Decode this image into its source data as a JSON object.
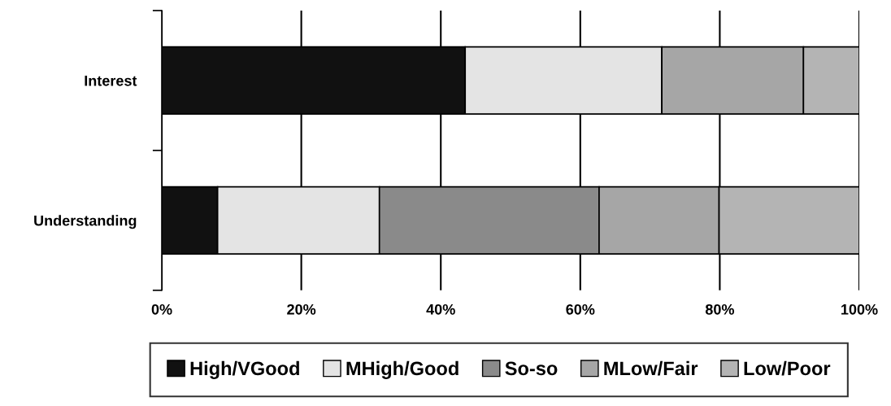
{
  "chart_data": {
    "type": "bar",
    "orientation": "horizontal",
    "stacked": true,
    "categories": [
      "Interest",
      "Understanding"
    ],
    "series": [
      {
        "name": "High/VGood",
        "color": "#111111",
        "values": [
          43.5,
          8.0
        ]
      },
      {
        "name": "MHigh/Good",
        "color": "#e4e4e4",
        "values": [
          28.2,
          23.2
        ]
      },
      {
        "name": "So-so",
        "color": "#8a8a8a",
        "values": [
          0,
          31.5
        ]
      },
      {
        "name": "MLow/Fair",
        "color": "#a6a6a6",
        "values": [
          20.3,
          17.2
        ]
      },
      {
        "name": "Low/Poor",
        "color": "#b4b4b4",
        "values": [
          8.0,
          20.1
        ]
      }
    ],
    "xlim": [
      0,
      100
    ],
    "xticks": [
      {
        "value": 0,
        "label": "0%"
      },
      {
        "value": 20,
        "label": "20%"
      },
      {
        "value": 40,
        "label": "40%"
      },
      {
        "value": 60,
        "label": "60%"
      },
      {
        "value": 80,
        "label": "80%"
      },
      {
        "value": 100,
        "label": "100%"
      }
    ],
    "grid": "x",
    "legend": "bottom"
  }
}
